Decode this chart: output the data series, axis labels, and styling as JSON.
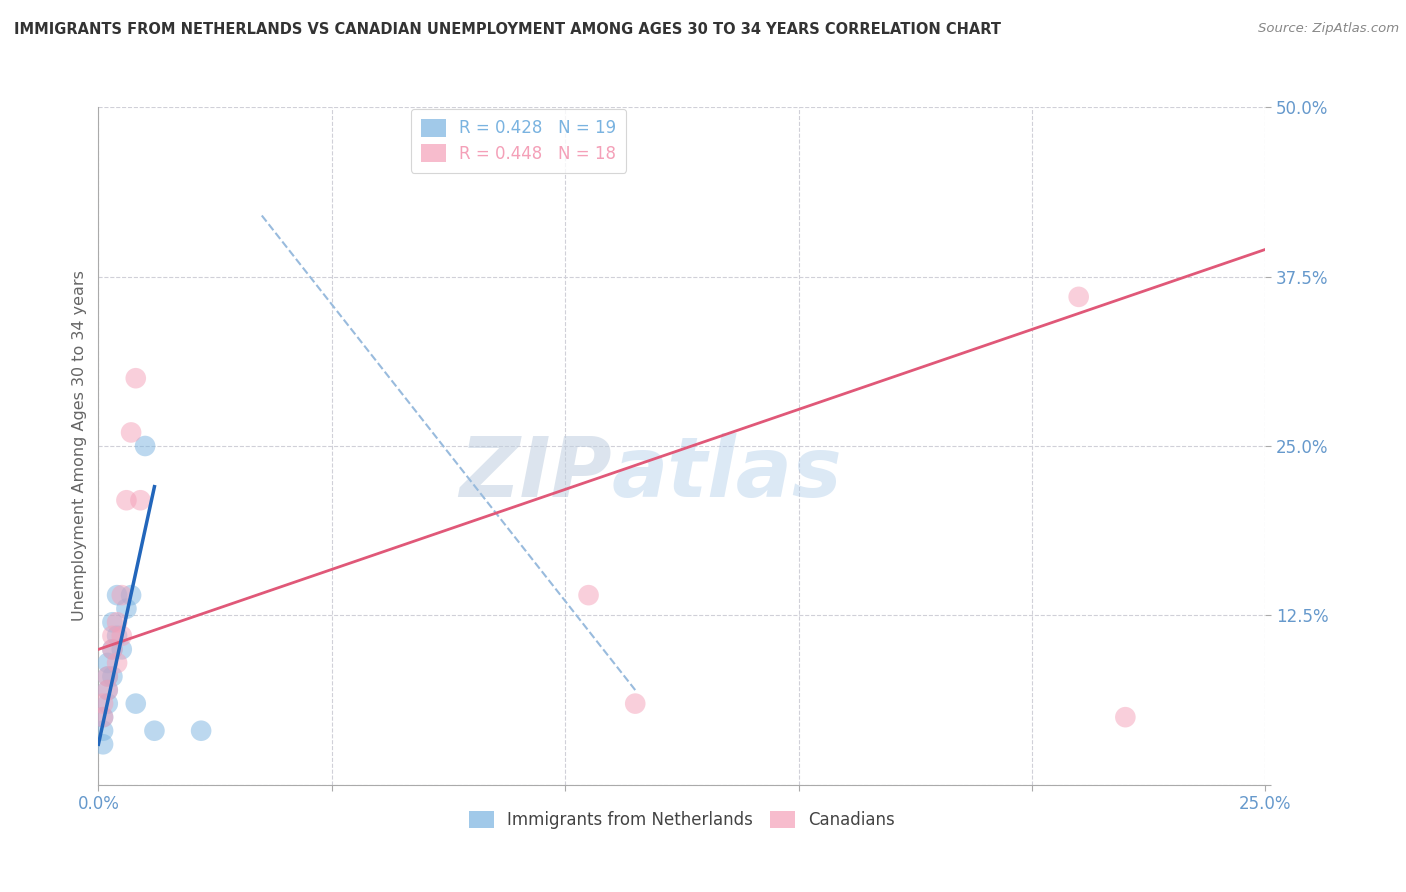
{
  "title": "IMMIGRANTS FROM NETHERLANDS VS CANADIAN UNEMPLOYMENT AMONG AGES 30 TO 34 YEARS CORRELATION CHART",
  "source": "Source: ZipAtlas.com",
  "ylabel": "Unemployment Among Ages 30 to 34 years",
  "xlim": [
    0.0,
    0.25
  ],
  "ylim": [
    0.0,
    0.5
  ],
  "xticks": [
    0.0,
    0.05,
    0.1,
    0.15,
    0.2,
    0.25
  ],
  "xticklabels": [
    "0.0%",
    "",
    "",
    "",
    "",
    "25.0%"
  ],
  "yticks": [
    0.0,
    0.125,
    0.25,
    0.375,
    0.5
  ],
  "yticklabels": [
    "",
    "12.5%",
    "25.0%",
    "37.5%",
    "50.0%"
  ],
  "legend_entries": [
    {
      "label": "R = 0.428   N = 19"
    },
    {
      "label": "R = 0.448   N = 18"
    }
  ],
  "blue_scatter_x": [
    0.001,
    0.001,
    0.001,
    0.002,
    0.002,
    0.002,
    0.002,
    0.003,
    0.003,
    0.003,
    0.004,
    0.004,
    0.005,
    0.006,
    0.007,
    0.008,
    0.01,
    0.012,
    0.022
  ],
  "blue_scatter_y": [
    0.03,
    0.04,
    0.05,
    0.06,
    0.07,
    0.08,
    0.09,
    0.1,
    0.08,
    0.12,
    0.11,
    0.14,
    0.1,
    0.13,
    0.14,
    0.06,
    0.25,
    0.04,
    0.04
  ],
  "pink_scatter_x": [
    0.001,
    0.001,
    0.002,
    0.002,
    0.003,
    0.003,
    0.004,
    0.004,
    0.005,
    0.005,
    0.006,
    0.007,
    0.008,
    0.009,
    0.105,
    0.115,
    0.21,
    0.22
  ],
  "pink_scatter_y": [
    0.05,
    0.06,
    0.07,
    0.08,
    0.1,
    0.11,
    0.09,
    0.12,
    0.11,
    0.14,
    0.21,
    0.26,
    0.3,
    0.21,
    0.14,
    0.06,
    0.36,
    0.05
  ],
  "blue_solid_line_x": [
    0.0,
    0.012
  ],
  "blue_solid_line_y": [
    0.03,
    0.22
  ],
  "blue_dash_line_x": [
    0.035,
    0.115
  ],
  "blue_dash_line_y": [
    0.42,
    0.07
  ],
  "pink_line_x": [
    0.0,
    0.25
  ],
  "pink_line_y": [
    0.1,
    0.395
  ],
  "scatter_color_blue": "#7ab3e0",
  "scatter_color_pink": "#f4a0b8",
  "line_color_blue_solid": "#2266bb",
  "line_color_blue_dash": "#99bbdd",
  "line_color_pink": "#e05878",
  "watermark_zip": "ZIP",
  "watermark_atlas": "atlas",
  "background_color": "#ffffff",
  "grid_color": "#d0d0d8",
  "title_color": "#333333",
  "axis_label_color": "#666666",
  "ytick_color": "#6699cc",
  "xtick_color": "#6699cc"
}
